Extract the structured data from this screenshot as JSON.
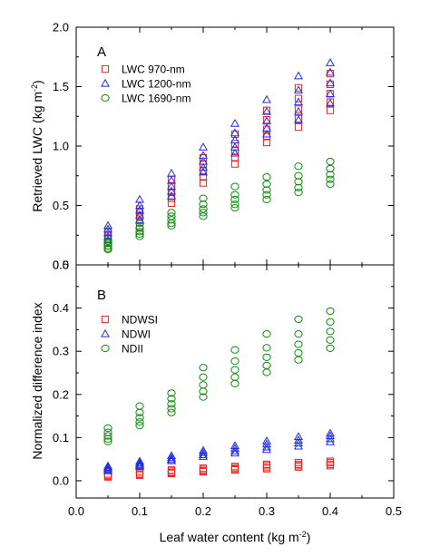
{
  "chart_data": [
    {
      "type": "scatter",
      "panel_label": "A",
      "ylabel": "Retrieved LWC (kg m",
      "ylabel_sup": "-2",
      "ylabel_end": ")",
      "xlim": [
        0,
        0.5
      ],
      "ylim": [
        0,
        2.0
      ],
      "yticks": [
        "0.0",
        "0.5",
        "1.0",
        "1.5",
        "2.0"
      ],
      "ytick_values": [
        0,
        0.5,
        1.0,
        1.5,
        2.0
      ],
      "legend_position": "upper-left",
      "grid": false,
      "series": [
        {
          "name": "LWC 970-nm",
          "marker": "square",
          "color": "#e8231f",
          "points": [
            [
              0.05,
              0.28
            ],
            [
              0.05,
              0.25
            ],
            [
              0.05,
              0.22
            ],
            [
              0.05,
              0.19
            ],
            [
              0.05,
              0.16
            ],
            [
              0.1,
              0.47
            ],
            [
              0.1,
              0.44
            ],
            [
              0.1,
              0.4
            ],
            [
              0.1,
              0.36
            ],
            [
              0.1,
              0.32
            ],
            [
              0.15,
              0.72
            ],
            [
              0.15,
              0.66
            ],
            [
              0.15,
              0.61
            ],
            [
              0.15,
              0.56
            ],
            [
              0.15,
              0.52
            ],
            [
              0.2,
              0.9
            ],
            [
              0.2,
              0.85
            ],
            [
              0.2,
              0.79
            ],
            [
              0.2,
              0.74
            ],
            [
              0.2,
              0.69
            ],
            [
              0.25,
              1.1
            ],
            [
              0.25,
              1.02
            ],
            [
              0.25,
              0.96
            ],
            [
              0.25,
              0.9
            ],
            [
              0.25,
              0.85
            ],
            [
              0.3,
              1.3
            ],
            [
              0.3,
              1.22
            ],
            [
              0.3,
              1.14
            ],
            [
              0.3,
              1.08
            ],
            [
              0.3,
              1.03
            ],
            [
              0.35,
              1.49
            ],
            [
              0.35,
              1.4
            ],
            [
              0.35,
              1.31
            ],
            [
              0.35,
              1.23
            ],
            [
              0.35,
              1.16
            ],
            [
              0.4,
              1.61
            ],
            [
              0.4,
              1.52
            ],
            [
              0.4,
              1.44
            ],
            [
              0.4,
              1.37
            ],
            [
              0.4,
              1.3
            ]
          ]
        },
        {
          "name": "LWC 1200-nm",
          "marker": "triangle",
          "color": "#1f2fe8",
          "points": [
            [
              0.05,
              0.33
            ],
            [
              0.05,
              0.3
            ],
            [
              0.05,
              0.27
            ],
            [
              0.05,
              0.24
            ],
            [
              0.05,
              0.21
            ],
            [
              0.1,
              0.55
            ],
            [
              0.1,
              0.5
            ],
            [
              0.1,
              0.46
            ],
            [
              0.1,
              0.42
            ],
            [
              0.1,
              0.38
            ],
            [
              0.15,
              0.77
            ],
            [
              0.15,
              0.71
            ],
            [
              0.15,
              0.66
            ],
            [
              0.15,
              0.62
            ],
            [
              0.15,
              0.58
            ],
            [
              0.2,
              0.99
            ],
            [
              0.2,
              0.92
            ],
            [
              0.2,
              0.87
            ],
            [
              0.2,
              0.82
            ],
            [
              0.2,
              0.78
            ],
            [
              0.25,
              1.19
            ],
            [
              0.25,
              1.11
            ],
            [
              0.25,
              1.05
            ],
            [
              0.25,
              0.99
            ],
            [
              0.25,
              0.94
            ],
            [
              0.3,
              1.39
            ],
            [
              0.3,
              1.29
            ],
            [
              0.3,
              1.21
            ],
            [
              0.3,
              1.15
            ],
            [
              0.3,
              1.1
            ],
            [
              0.35,
              1.59
            ],
            [
              0.35,
              1.47
            ],
            [
              0.35,
              1.37
            ],
            [
              0.35,
              1.29
            ],
            [
              0.35,
              1.22
            ],
            [
              0.4,
              1.7
            ],
            [
              0.4,
              1.62
            ],
            [
              0.4,
              1.53
            ],
            [
              0.4,
              1.44
            ],
            [
              0.4,
              1.36
            ]
          ]
        },
        {
          "name": "LWC 1690-nm",
          "marker": "circle",
          "color": "#0f8a0f",
          "points": [
            [
              0.05,
              0.2
            ],
            [
              0.05,
              0.18
            ],
            [
              0.05,
              0.16
            ],
            [
              0.05,
              0.14
            ],
            [
              0.05,
              0.13
            ],
            [
              0.1,
              0.35
            ],
            [
              0.1,
              0.31
            ],
            [
              0.1,
              0.28
            ],
            [
              0.1,
              0.26
            ],
            [
              0.1,
              0.24
            ],
            [
              0.15,
              0.44
            ],
            [
              0.15,
              0.41
            ],
            [
              0.15,
              0.38
            ],
            [
              0.15,
              0.35
            ],
            [
              0.15,
              0.33
            ],
            [
              0.2,
              0.56
            ],
            [
              0.2,
              0.51
            ],
            [
              0.2,
              0.47
            ],
            [
              0.2,
              0.44
            ],
            [
              0.2,
              0.41
            ],
            [
              0.25,
              0.66
            ],
            [
              0.25,
              0.59
            ],
            [
              0.25,
              0.55
            ],
            [
              0.25,
              0.51
            ],
            [
              0.25,
              0.48
            ],
            [
              0.3,
              0.74
            ],
            [
              0.3,
              0.68
            ],
            [
              0.3,
              0.63
            ],
            [
              0.3,
              0.59
            ],
            [
              0.3,
              0.55
            ],
            [
              0.35,
              0.83
            ],
            [
              0.35,
              0.75
            ],
            [
              0.35,
              0.7
            ],
            [
              0.35,
              0.65
            ],
            [
              0.35,
              0.61
            ],
            [
              0.4,
              0.87
            ],
            [
              0.4,
              0.81
            ],
            [
              0.4,
              0.76
            ],
            [
              0.4,
              0.72
            ],
            [
              0.4,
              0.68
            ]
          ]
        }
      ]
    },
    {
      "type": "scatter",
      "panel_label": "B",
      "ylabel": "Normalized difference index",
      "xlabel": "Leaf water content (kg m",
      "xlabel_sup": "-2",
      "xlabel_end": ")",
      "xlim": [
        0,
        0.5
      ],
      "ylim": [
        -0.04,
        0.5
      ],
      "xticks": [
        "0.0",
        "0.1",
        "0.2",
        "0.3",
        "0.4",
        "0.5"
      ],
      "xtick_values": [
        0,
        0.1,
        0.2,
        0.3,
        0.4,
        0.5
      ],
      "yticks": [
        "0.0",
        "0.1",
        "0.2",
        "0.3",
        "0.4",
        "0.5"
      ],
      "ytick_values": [
        0,
        0.1,
        0.2,
        0.3,
        0.4,
        0.5
      ],
      "legend_position": "upper-left",
      "grid": false,
      "series": [
        {
          "name": "NDWSI",
          "marker": "square",
          "color": "#e8231f",
          "points": [
            [
              0.05,
              0.016
            ],
            [
              0.05,
              0.013
            ],
            [
              0.05,
              0.011
            ],
            [
              0.05,
              0.009
            ],
            [
              0.1,
              0.022
            ],
            [
              0.1,
              0.018
            ],
            [
              0.1,
              0.015
            ],
            [
              0.1,
              0.013
            ],
            [
              0.15,
              0.025
            ],
            [
              0.15,
              0.022
            ],
            [
              0.15,
              0.019
            ],
            [
              0.15,
              0.017
            ],
            [
              0.2,
              0.029
            ],
            [
              0.2,
              0.026
            ],
            [
              0.2,
              0.023
            ],
            [
              0.2,
              0.021
            ],
            [
              0.25,
              0.033
            ],
            [
              0.25,
              0.03
            ],
            [
              0.25,
              0.027
            ],
            [
              0.25,
              0.025
            ],
            [
              0.3,
              0.038
            ],
            [
              0.3,
              0.035
            ],
            [
              0.3,
              0.031
            ],
            [
              0.3,
              0.028
            ],
            [
              0.35,
              0.042
            ],
            [
              0.35,
              0.038
            ],
            [
              0.35,
              0.035
            ],
            [
              0.35,
              0.032
            ],
            [
              0.4,
              0.045
            ],
            [
              0.4,
              0.042
            ],
            [
              0.4,
              0.038
            ],
            [
              0.4,
              0.035
            ]
          ]
        },
        {
          "name": "NDWI",
          "marker": "triangle",
          "color": "#1f2fe8",
          "points": [
            [
              0.05,
              0.034
            ],
            [
              0.05,
              0.031
            ],
            [
              0.05,
              0.028
            ],
            [
              0.05,
              0.025
            ],
            [
              0.05,
              0.023
            ],
            [
              0.1,
              0.045
            ],
            [
              0.1,
              0.041
            ],
            [
              0.1,
              0.038
            ],
            [
              0.1,
              0.035
            ],
            [
              0.1,
              0.033
            ],
            [
              0.15,
              0.058
            ],
            [
              0.15,
              0.053
            ],
            [
              0.15,
              0.049
            ],
            [
              0.15,
              0.046
            ],
            [
              0.2,
              0.07
            ],
            [
              0.2,
              0.065
            ],
            [
              0.2,
              0.06
            ],
            [
              0.2,
              0.056
            ],
            [
              0.25,
              0.081
            ],
            [
              0.25,
              0.075
            ],
            [
              0.25,
              0.069
            ],
            [
              0.25,
              0.064
            ],
            [
              0.3,
              0.092
            ],
            [
              0.3,
              0.085
            ],
            [
              0.3,
              0.078
            ],
            [
              0.3,
              0.072
            ],
            [
              0.35,
              0.102
            ],
            [
              0.35,
              0.094
            ],
            [
              0.35,
              0.087
            ],
            [
              0.35,
              0.08
            ],
            [
              0.4,
              0.11
            ],
            [
              0.4,
              0.104
            ],
            [
              0.4,
              0.097
            ],
            [
              0.4,
              0.09
            ]
          ]
        },
        {
          "name": "NDII",
          "marker": "circle",
          "color": "#0f8a0f",
          "points": [
            [
              0.05,
              0.122
            ],
            [
              0.05,
              0.112
            ],
            [
              0.05,
              0.104
            ],
            [
              0.05,
              0.097
            ],
            [
              0.05,
              0.091
            ],
            [
              0.1,
              0.173
            ],
            [
              0.1,
              0.158
            ],
            [
              0.1,
              0.146
            ],
            [
              0.1,
              0.136
            ],
            [
              0.1,
              0.128
            ],
            [
              0.15,
              0.203
            ],
            [
              0.15,
              0.19
            ],
            [
              0.15,
              0.178
            ],
            [
              0.15,
              0.167
            ],
            [
              0.15,
              0.158
            ],
            [
              0.2,
              0.262
            ],
            [
              0.2,
              0.24
            ],
            [
              0.2,
              0.222
            ],
            [
              0.2,
              0.207
            ],
            [
              0.2,
              0.194
            ],
            [
              0.25,
              0.303
            ],
            [
              0.25,
              0.277
            ],
            [
              0.25,
              0.257
            ],
            [
              0.25,
              0.24
            ],
            [
              0.25,
              0.225
            ],
            [
              0.3,
              0.34
            ],
            [
              0.3,
              0.308
            ],
            [
              0.3,
              0.286
            ],
            [
              0.3,
              0.267
            ],
            [
              0.3,
              0.251
            ],
            [
              0.35,
              0.374
            ],
            [
              0.35,
              0.34
            ],
            [
              0.35,
              0.316
            ],
            [
              0.35,
              0.296
            ],
            [
              0.35,
              0.28
            ],
            [
              0.4,
              0.393
            ],
            [
              0.4,
              0.368
            ],
            [
              0.4,
              0.346
            ],
            [
              0.4,
              0.326
            ],
            [
              0.4,
              0.307
            ]
          ]
        }
      ]
    }
  ]
}
